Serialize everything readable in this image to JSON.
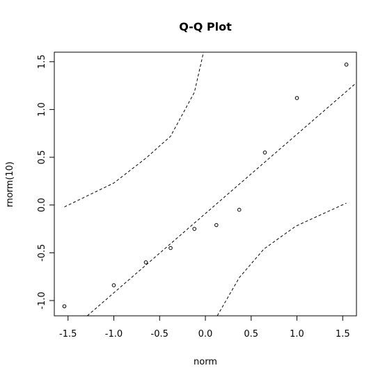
{
  "chart_data": {
    "type": "scatter",
    "title": "Q-Q Plot",
    "x_label": "norm",
    "y_label": "rnorm(10)",
    "xlim": [
      -1.65,
      1.65
    ],
    "ylim": [
      -1.16,
      1.6
    ],
    "xticks": [
      -1.5,
      {
        "value": -1,
        "label": "-1.0"
      },
      -0.5,
      {
        "value": 0,
        "label": "0.0"
      },
      0.5,
      {
        "value": 1,
        "label": "1.0"
      },
      1.5
    ],
    "yticks": [
      {
        "value": -1,
        "label": "-1.0"
      },
      -0.5,
      {
        "value": 0,
        "label": "0.0"
      },
      0.5,
      {
        "value": 1,
        "label": "1.0"
      },
      1.5
    ],
    "series": [
      {
        "kind": "points",
        "color": "#000000",
        "x": [
          -1.54,
          -1.0,
          -0.65,
          -0.38,
          -0.12,
          0.12,
          0.37,
          0.65,
          1.0,
          1.54
        ],
        "values": [
          -1.06,
          -0.84,
          -0.6,
          -0.45,
          -0.25,
          -0.21,
          -0.05,
          0.55,
          1.12,
          1.47
        ]
      },
      {
        "kind": "dashed",
        "color": "#000000",
        "x": [
          -1.29,
          1.65
        ],
        "values": [
          -1.16,
          1.28
        ]
      },
      {
        "kind": "dashed",
        "color": "#000000",
        "x": [
          -1.54,
          -1.0,
          -0.65,
          -0.38,
          -0.12,
          -0.02
        ],
        "values": [
          -0.02,
          0.23,
          0.49,
          0.72,
          1.18,
          1.6
        ]
      },
      {
        "kind": "dashed",
        "color": "#000000",
        "x": [
          0.13,
          0.37,
          0.64,
          0.99,
          1.54
        ],
        "values": [
          -1.16,
          -0.76,
          -0.46,
          -0.22,
          0.02
        ]
      }
    ]
  }
}
